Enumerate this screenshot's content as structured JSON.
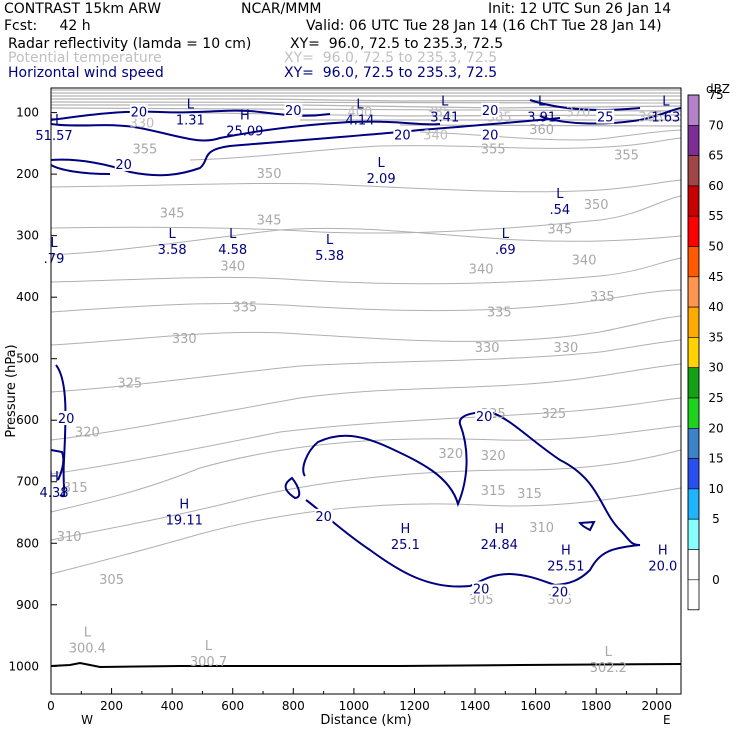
{
  "header": {
    "model": "CONTRAST 15km ARW",
    "forecast": "Fcst:     42 h",
    "institution": "NCAR/MMM",
    "init": "Init: 12 UTC Sun 26 Jan 14",
    "valid": "Valid: 06 UTC Tue 28 Jan 14 (16 ChT Tue 28 Jan 14)"
  },
  "legend": [
    {
      "label": "Radar reflectivity (lamda = 10 cm)",
      "xy": "XY=  96.0, 72.5 to 235.3, 72.5",
      "color": "#000000"
    },
    {
      "label": "Potential temperature",
      "xy": "XY=  96.0, 72.5 to 235.3, 72.5",
      "color": "#c0c0c0"
    },
    {
      "label": "Horizontal wind speed",
      "xy": "XY=  96.0, 72.5 to 235.3, 72.5",
      "color": "#000080"
    }
  ],
  "chart_data": {
    "type": "vertical-cross-section",
    "xlabel": "Distance (km)",
    "ylabel": "Pressure (hPa)",
    "xlim": [
      0,
      2080
    ],
    "ylim": [
      1045,
      60
    ],
    "x_ticks": [
      "0",
      "200",
      "400",
      "600",
      "800",
      "1000",
      "1200",
      "1400",
      "1600",
      "1800",
      "2000"
    ],
    "y_ticks": [
      "100",
      "200",
      "300",
      "400",
      "500",
      "600",
      "700",
      "800",
      "900",
      "1000"
    ],
    "x_end_labels": {
      "left": "W",
      "right": "E"
    },
    "colorbar": {
      "unit": "dBZ",
      "levels": [
        "0",
        "5",
        "10",
        "15",
        "20",
        "25",
        "30",
        "35",
        "40",
        "45",
        "50",
        "55",
        "60",
        "65",
        "70",
        "75"
      ],
      "colors": [
        "#ffffff",
        "#86ffff",
        "#1eb4ff",
        "#2850f0",
        "#3c82c8",
        "#1ed21e",
        "#14a014",
        "#ffd200",
        "#ffaa00",
        "#ff9650",
        "#ff5a00",
        "#ff0000",
        "#c80000",
        "#a04646",
        "#7d2d96",
        "#b482c8"
      ]
    },
    "theta_labels": [
      {
        "text": "355",
        "x": 310,
        "p": 160
      },
      {
        "text": "360",
        "x": 1620,
        "p": 128
      },
      {
        "text": "355",
        "x": 1460,
        "p": 160
      },
      {
        "text": "355",
        "x": 1900,
        "p": 170
      },
      {
        "text": "350",
        "x": 720,
        "p": 200
      },
      {
        "text": "350",
        "x": 1800,
        "p": 250
      },
      {
        "text": "345",
        "x": 400,
        "p": 264
      },
      {
        "text": "345",
        "x": 720,
        "p": 275
      },
      {
        "text": "345",
        "x": 1680,
        "p": 290
      },
      {
        "text": "340",
        "x": 600,
        "p": 350
      },
      {
        "text": "340",
        "x": 1420,
        "p": 355
      },
      {
        "text": "340",
        "x": 1760,
        "p": 340
      },
      {
        "text": "335",
        "x": 640,
        "p": 417
      },
      {
        "text": "335",
        "x": 1480,
        "p": 425
      },
      {
        "text": "335",
        "x": 1820,
        "p": 400
      },
      {
        "text": "330",
        "x": 440,
        "p": 468
      },
      {
        "text": "330",
        "x": 1440,
        "p": 483
      },
      {
        "text": "330",
        "x": 1700,
        "p": 483
      },
      {
        "text": "325",
        "x": 260,
        "p": 540
      },
      {
        "text": "325",
        "x": 1460,
        "p": 590
      },
      {
        "text": "325",
        "x": 1660,
        "p": 590
      },
      {
        "text": "320",
        "x": 120,
        "p": 620
      },
      {
        "text": "320",
        "x": 1320,
        "p": 655
      },
      {
        "text": "320",
        "x": 1460,
        "p": 658
      },
      {
        "text": "315",
        "x": 80,
        "p": 710
      },
      {
        "text": "315",
        "x": 1460,
        "p": 715
      },
      {
        "text": "315",
        "x": 1580,
        "p": 720
      },
      {
        "text": "310",
        "x": 60,
        "p": 790
      },
      {
        "text": "310",
        "x": 1620,
        "p": 775
      },
      {
        "text": "305",
        "x": 200,
        "p": 860
      },
      {
        "text": "305",
        "x": 1420,
        "p": 892
      },
      {
        "text": "305",
        "x": 1680,
        "p": 892
      }
    ],
    "theta_top_labels": [
      {
        "text": "400",
        "x": 1020,
        "p": 100
      },
      {
        "text": "385",
        "x": 1280,
        "p": 100
      },
      {
        "text": "385",
        "x": 1480,
        "p": 108
      },
      {
        "text": "365",
        "x": 1980,
        "p": 108
      },
      {
        "text": "370",
        "x": 1740,
        "p": 100
      },
      {
        "text": "330",
        "x": 300,
        "p": 118
      },
      {
        "text": "340",
        "x": 1270,
        "p": 137
      }
    ],
    "wind_contour_labels": [
      {
        "text": "20",
        "x": 290,
        "p": 100
      },
      {
        "text": "20",
        "x": 800,
        "p": 97
      },
      {
        "text": "20",
        "x": 1450,
        "p": 97
      },
      {
        "text": "20",
        "x": 1160,
        "p": 137
      },
      {
        "text": "20",
        "x": 1450,
        "p": 137
      },
      {
        "text": "25",
        "x": 1830,
        "p": 108
      },
      {
        "text": "20",
        "x": 240,
        "p": 185
      },
      {
        "text": "20",
        "x": 50,
        "p": 598
      },
      {
        "text": "20",
        "x": 1430,
        "p": 595
      },
      {
        "text": "20",
        "x": 900,
        "p": 757
      },
      {
        "text": "20",
        "x": 1420,
        "p": 875
      },
      {
        "text": "20",
        "x": 1680,
        "p": 880
      }
    ],
    "extrema": [
      {
        "type": "L",
        "value": "1.31",
        "x": 460,
        "p": 100
      },
      {
        "type": "H",
        "value": "25.09",
        "x": 640,
        "p": 118
      },
      {
        "type": "L",
        "value": "4.14",
        "x": 1020,
        "p": 100
      },
      {
        "type": "L",
        "value": "3.41",
        "x": 1300,
        "p": 95
      },
      {
        "type": "L",
        "value": "3.91",
        "x": 1620,
        "p": 95
      },
      {
        "type": "L",
        "value": "1.63",
        "x": 2030,
        "p": 95
      },
      {
        "type": "H",
        "value": "51.57",
        "x": 10,
        "p": 125
      },
      {
        "type": "L",
        "value": "2.09",
        "x": 1090,
        "p": 195
      },
      {
        "type": "L",
        "value": ".54",
        "x": 1680,
        "p": 245
      },
      {
        "type": "L",
        "value": "3.58",
        "x": 400,
        "p": 310
      },
      {
        "type": "L",
        "value": "4.58",
        "x": 600,
        "p": 310
      },
      {
        "type": "L",
        "value": "5.38",
        "x": 920,
        "p": 320
      },
      {
        "type": "L",
        "value": ".69",
        "x": 1500,
        "p": 310
      },
      {
        "type": "L",
        "value": ".79",
        "x": 10,
        "p": 325
      },
      {
        "type": "H",
        "value": "4.38",
        "x": 10,
        "p": 705
      },
      {
        "type": "H",
        "value": "19.11",
        "x": 440,
        "p": 750
      },
      {
        "type": "H",
        "value": "25.1",
        "x": 1170,
        "p": 790
      },
      {
        "type": "H",
        "value": "24.84",
        "x": 1480,
        "p": 790
      },
      {
        "type": "H",
        "value": "25.51",
        "x": 1700,
        "p": 825
      },
      {
        "type": "H",
        "value": "20.0",
        "x": 2020,
        "p": 825
      },
      {
        "type": "L",
        "value": "300.4",
        "x": 120,
        "p": 958
      },
      {
        "type": "L",
        "value": "300.7",
        "x": 520,
        "p": 980
      },
      {
        "type": "L",
        "value": "302.2",
        "x": 1840,
        "p": 990
      }
    ]
  }
}
